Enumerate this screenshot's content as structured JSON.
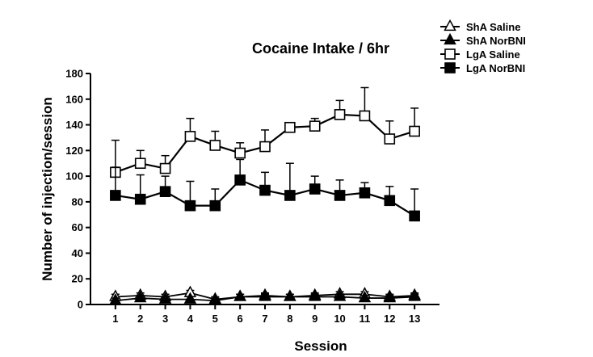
{
  "chart_data": {
    "type": "line",
    "title": "Cocaine Intake / 6hr",
    "xlabel": "Session",
    "ylabel": "Number of injection/session",
    "x": [
      1,
      2,
      3,
      4,
      5,
      6,
      7,
      8,
      9,
      10,
      11,
      12,
      13
    ],
    "xlim": [
      0,
      14
    ],
    "ylim": [
      0,
      180
    ],
    "yticks": [
      0,
      20,
      40,
      60,
      80,
      100,
      120,
      140,
      160,
      180
    ],
    "grid": false,
    "legend_position": "top-right",
    "error_bars": true,
    "series": [
      {
        "name": "ShA Saline",
        "marker": "triangle-open",
        "values": [
          6,
          7,
          6,
          9,
          4,
          6,
          7,
          6,
          7,
          8,
          8,
          6,
          7
        ],
        "error": [
          2,
          2,
          2,
          2,
          2,
          2,
          2,
          2,
          2,
          2,
          2,
          2,
          2
        ]
      },
      {
        "name": "ShA NorBNI",
        "marker": "triangle-filled",
        "values": [
          3,
          5,
          4,
          4,
          3,
          6,
          6,
          6,
          6,
          6,
          5,
          5,
          6
        ],
        "error": [
          2,
          2,
          2,
          2,
          2,
          2,
          2,
          2,
          2,
          2,
          2,
          2,
          2
        ]
      },
      {
        "name": "LgA Saline",
        "marker": "square-open",
        "values": [
          103,
          110,
          106,
          131,
          124,
          118,
          123,
          138,
          139,
          148,
          147,
          129,
          135
        ],
        "error": [
          25,
          10,
          10,
          14,
          11,
          8,
          13,
          0,
          6,
          11,
          22,
          14,
          18
        ]
      },
      {
        "name": "LgA NorBNI",
        "marker": "square-filled",
        "values": [
          85,
          82,
          88,
          77,
          77,
          97,
          89,
          85,
          90,
          85,
          87,
          81,
          69
        ],
        "error": [
          22,
          19,
          12,
          19,
          13,
          16,
          14,
          25,
          10,
          12,
          8,
          11,
          21
        ]
      }
    ]
  }
}
